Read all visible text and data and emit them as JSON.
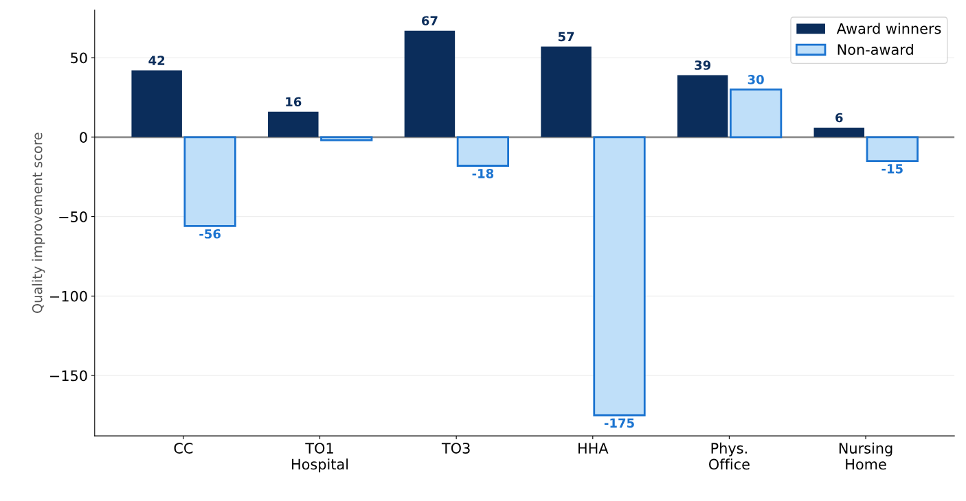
{
  "chart_data": {
    "type": "bar",
    "ylabel": "Quality improvement score",
    "categories": [
      "CC",
      "TO1\nHospital",
      "TO3",
      "HHA",
      "Phys.\nOffice",
      "Nursing\nHome"
    ],
    "series": [
      {
        "name": "Award winners",
        "color": "#0b2d5b",
        "values": [
          42,
          16,
          67,
          57,
          39,
          6
        ],
        "value_labels": [
          "42",
          "16",
          "67",
          "57",
          "39",
          "6"
        ]
      },
      {
        "name": "Non-award",
        "color": "#bfdff9",
        "values": [
          -56,
          -2,
          -18,
          -175,
          30,
          -15
        ],
        "value_labels": [
          "-56",
          null,
          "-18",
          "-175",
          "30",
          "-15"
        ]
      }
    ],
    "ylim": [
      -188,
      80
    ],
    "yticks": [
      -150,
      -100,
      -50,
      0,
      50
    ],
    "ref_lines": [
      {
        "axis": "y",
        "value": 0,
        "color": "#8c8c8c"
      }
    ],
    "grid": "y",
    "legend": "top right"
  }
}
